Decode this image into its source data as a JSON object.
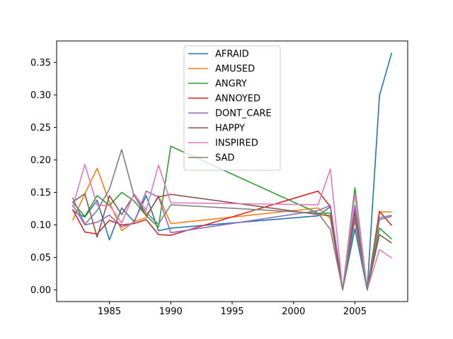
{
  "chart_data": {
    "type": "line",
    "title": "",
    "xlabel": "",
    "ylabel": "",
    "xlim": [
      1980.7,
      2009.3
    ],
    "ylim": [
      -0.018,
      0.383
    ],
    "x_ticks": [
      1985,
      1990,
      1995,
      2000,
      2005
    ],
    "y_ticks": [
      0.0,
      0.05,
      0.1,
      0.15,
      0.2,
      0.25,
      0.3,
      0.35
    ],
    "x_tick_labels": [
      "1985",
      "1990",
      "1995",
      "2000",
      "2005"
    ],
    "y_tick_labels": [
      "0.00",
      "0.05",
      "0.10",
      "0.15",
      "0.20",
      "0.25",
      "0.30",
      "0.35"
    ],
    "grid": false,
    "legend_position": "upper center",
    "x": [
      1982,
      1983,
      1984,
      1985,
      1986,
      1987,
      1988,
      1989,
      1990,
      2002,
      2003,
      2004,
      2005,
      2006,
      2007,
      2008
    ],
    "series": [
      {
        "name": "AFRAID",
        "color": "#1f77b4",
        "values": [
          0.122,
          0.112,
          0.138,
          0.077,
          0.126,
          0.105,
          0.145,
          0.091,
          0.095,
          0.114,
          0.128,
          0.0,
          0.094,
          0.0,
          0.299,
          0.365
        ]
      },
      {
        "name": "AMUSED",
        "color": "#ff7f0e",
        "values": [
          0.107,
          0.148,
          0.187,
          0.135,
          0.091,
          0.105,
          0.111,
          0.145,
          0.102,
          0.126,
          0.11,
          0.0,
          0.111,
          0.0,
          0.12,
          0.12
        ]
      },
      {
        "name": "ANGRY",
        "color": "#2ca02c",
        "values": [
          0.135,
          0.113,
          0.145,
          0.13,
          0.15,
          0.137,
          0.114,
          0.097,
          0.221,
          0.118,
          0.118,
          0.0,
          0.157,
          0.0,
          0.095,
          0.078
        ]
      },
      {
        "name": "ANNOYED",
        "color": "#d62728",
        "values": [
          0.124,
          0.089,
          0.086,
          0.107,
          0.1,
          0.102,
          0.108,
          0.085,
          0.084,
          0.152,
          0.128,
          0.0,
          0.123,
          0.0,
          0.121,
          0.099
        ]
      },
      {
        "name": "DONT_CARE",
        "color": "#9467bd",
        "values": [
          0.131,
          0.1,
          0.104,
          0.115,
          0.097,
          0.103,
          0.152,
          0.143,
          0.088,
          0.122,
          0.13,
          0.0,
          0.13,
          0.0,
          0.108,
          0.113
        ]
      },
      {
        "name": "HAPPY",
        "color": "#8c564b",
        "values": [
          0.135,
          0.148,
          0.081,
          0.145,
          0.116,
          0.146,
          0.114,
          0.143,
          0.147,
          0.116,
          0.114,
          0.0,
          0.119,
          0.0,
          0.085,
          0.072
        ]
      },
      {
        "name": "INSPIRED",
        "color": "#e377c2",
        "values": [
          0.127,
          0.193,
          0.13,
          0.13,
          0.103,
          0.148,
          0.123,
          0.192,
          0.134,
          0.131,
          0.186,
          0.0,
          0.148,
          0.0,
          0.062,
          0.049
        ]
      },
      {
        "name": "SAD",
        "color": "#7f7f7f",
        "values": [
          0.142,
          0.101,
          0.122,
          0.155,
          0.216,
          0.145,
          0.119,
          0.101,
          0.131,
          0.118,
          0.093,
          0.0,
          0.107,
          0.0,
          0.111,
          0.115
        ]
      }
    ]
  }
}
